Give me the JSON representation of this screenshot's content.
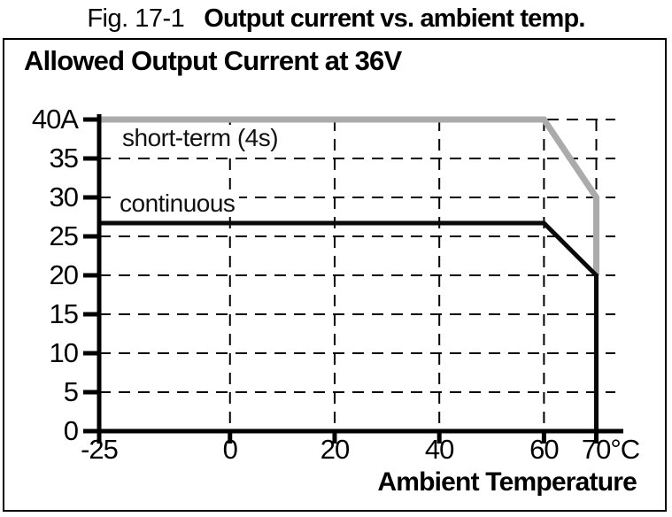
{
  "figure": {
    "fig_label": "Fig. 17-1",
    "title": "Output current vs. ambient temp."
  },
  "panel": {
    "heading": "Allowed Output Current at 36V"
  },
  "colors": {
    "short_term_line": "#ababab",
    "continuous_line": "#0a0a0a",
    "axis": "#000000",
    "grid": "#000000",
    "panel_border": "#000000",
    "background": "#ffffff"
  },
  "chart_data": {
    "type": "line",
    "title": "Allowed Output Current at 36V",
    "xlabel": "Ambient Temperature",
    "ylabel": "",
    "x_unit": "°C",
    "y_unit": "A",
    "xlim": [
      -25,
      73.5
    ],
    "ylim": [
      0,
      40
    ],
    "grid": "dashed",
    "legend_position": "inline-annotations",
    "x_ticks": [
      {
        "value": -25,
        "label": "-25"
      },
      {
        "value": 0,
        "label": "0"
      },
      {
        "value": 20,
        "label": "20"
      },
      {
        "value": 40,
        "label": "40"
      },
      {
        "value": 60,
        "label": "60"
      },
      {
        "value": 70,
        "label": "70°C"
      }
    ],
    "y_ticks": [
      {
        "value": 0,
        "label": "0"
      },
      {
        "value": 5,
        "label": "5"
      },
      {
        "value": 10,
        "label": "10"
      },
      {
        "value": 15,
        "label": "15"
      },
      {
        "value": 20,
        "label": "20"
      },
      {
        "value": 25,
        "label": "25"
      },
      {
        "value": 30,
        "label": "30"
      },
      {
        "value": 35,
        "label": "35"
      },
      {
        "value": 40,
        "label": "40A"
      }
    ],
    "x_gridlines": [
      0,
      20,
      40,
      60,
      70
    ],
    "y_gridlines": [
      5,
      10,
      15,
      20,
      25,
      30,
      35,
      40
    ],
    "series": [
      {
        "name": "short-term (4s)",
        "color": "#ababab",
        "stroke_width": 7,
        "points": [
          [
            -25,
            40
          ],
          [
            60,
            40
          ],
          [
            70,
            30
          ],
          [
            70,
            20
          ]
        ]
      },
      {
        "name": "continuous",
        "color": "#0a0a0a",
        "stroke_width": 5,
        "points": [
          [
            -25,
            26.7
          ],
          [
            60,
            26.7
          ],
          [
            70,
            20
          ],
          [
            70,
            0
          ]
        ]
      }
    ]
  }
}
